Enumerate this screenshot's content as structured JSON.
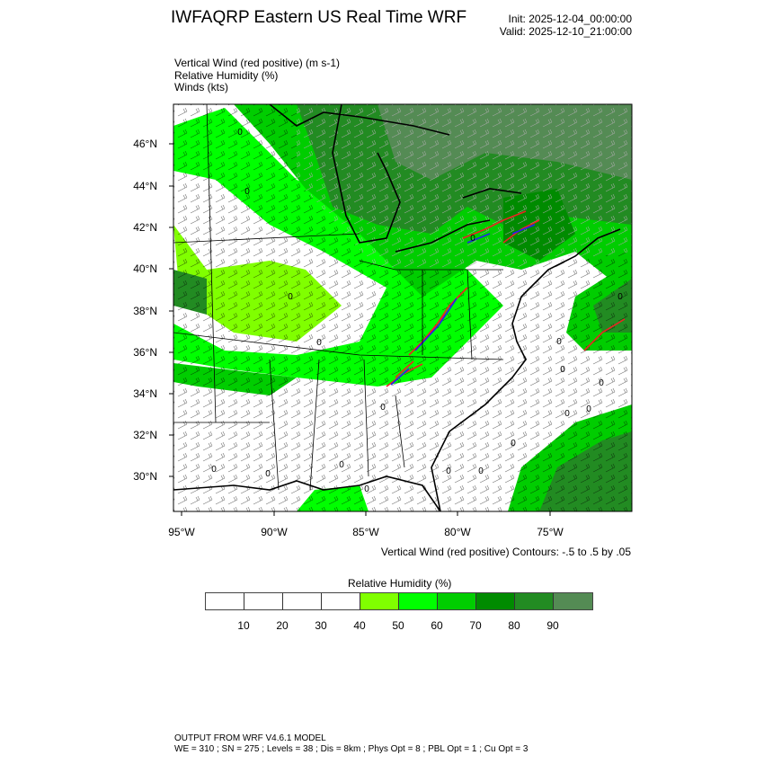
{
  "title": "IWFAQRP Eastern US Real Time WRF",
  "init": "Init: 2025-12-04_00:00:00",
  "valid": "Valid: 2025-12-10_21:00:00",
  "fields": [
    "Vertical Wind (red positive)   (m s-1)",
    "Relative Humidity   (%)",
    "Winds   (kts)"
  ],
  "map": {
    "lat_labels": [
      "46°N",
      "44°N",
      "42°N",
      "40°N",
      "38°N",
      "36°N",
      "34°N",
      "32°N",
      "30°N"
    ],
    "lon_labels": [
      "95°W",
      "90°W",
      "85°W",
      "80°W",
      "75°W"
    ],
    "contour_label": "0"
  },
  "contour_info": "Vertical Wind (red positive) Contours: -.5 to .5 by .05",
  "colorbar": {
    "title": "Relative Humidity  (%)",
    "colors": [
      "#ffffff",
      "#ffffff",
      "#ffffff",
      "#ffffff",
      "#80ff00",
      "#00ff00",
      "#00cd00",
      "#008b00",
      "#228b22",
      "#548b54"
    ],
    "labels": [
      "10",
      "20",
      "30",
      "40",
      "50",
      "60",
      "70",
      "80",
      "90"
    ]
  },
  "footer": [
    "OUTPUT FROM WRF V4.6.1 MODEL",
    "WE = 310 ; SN = 275 ; Levels = 38 ; Dis = 8km ; Phys Opt = 8 ; PBL Opt = 1 ; Cu Opt = 3"
  ]
}
